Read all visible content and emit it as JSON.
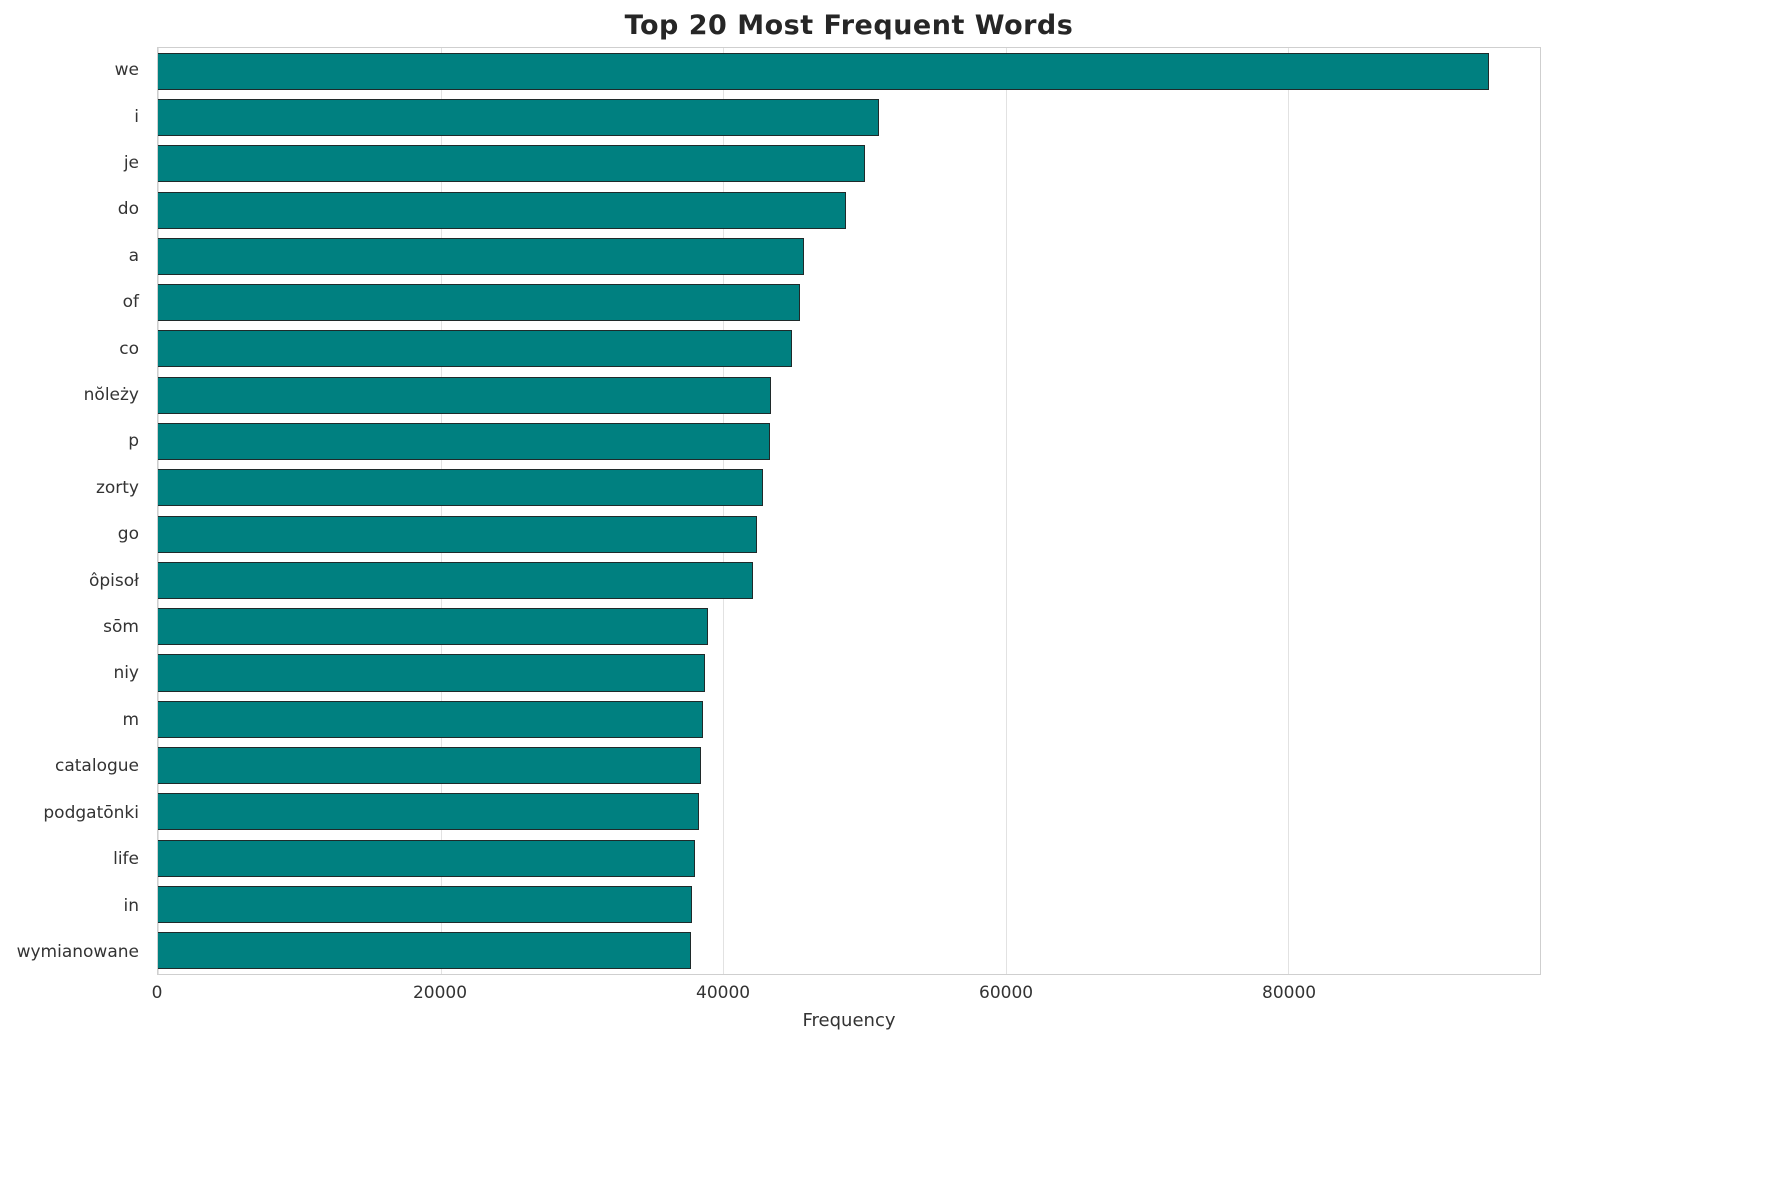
{
  "title": "Top 20 Most Frequent Words",
  "chart_data": {
    "type": "bar",
    "orientation": "horizontal",
    "title": "Top 20 Most Frequent Words",
    "xlabel": "Frequency",
    "ylabel": "",
    "grid": true,
    "legend": false,
    "xlim": [
      0,
      97800
    ],
    "xticks": [
      0,
      20000,
      40000,
      60000,
      80000
    ],
    "bar_color": "#008080",
    "bar_edge_color": "#1f2a2a",
    "categories": [
      "we",
      "i",
      "je",
      "do",
      "a",
      "of",
      "co",
      "nŏleży",
      "p",
      "zorty",
      "go",
      "ôpisoł",
      "sōm",
      "niy",
      "m",
      "catalogue",
      "podgatōnki",
      "life",
      "in",
      "wymianowane"
    ],
    "values": [
      94200,
      51000,
      50000,
      48700,
      45700,
      45400,
      44900,
      43400,
      43300,
      42800,
      42400,
      42100,
      38900,
      38700,
      38600,
      38400,
      38300,
      38000,
      37800,
      37750
    ]
  }
}
